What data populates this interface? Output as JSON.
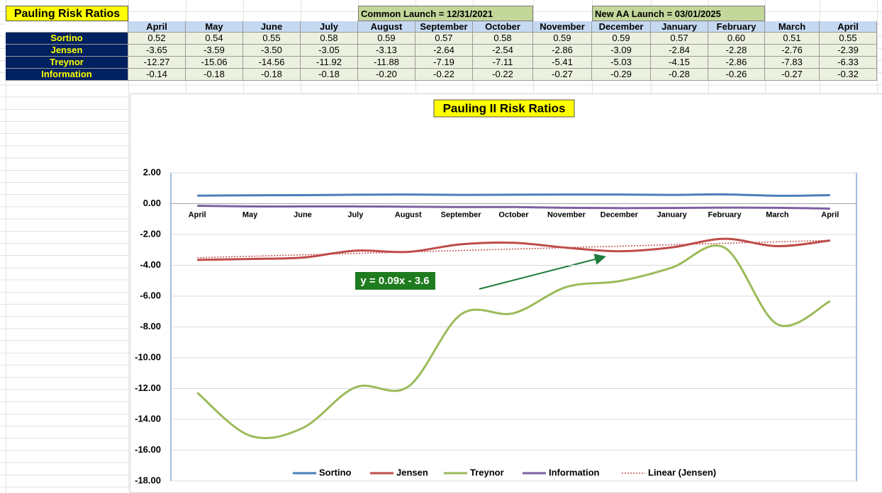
{
  "table": {
    "title": "Pauling Risk Ratios",
    "notes": [
      "Common Launch = 12/31/2021",
      "New AA Launch = 03/01/2025"
    ],
    "columns": [
      "April",
      "May",
      "June",
      "July",
      "August",
      "September",
      "October",
      "November",
      "December",
      "January",
      "February",
      "March",
      "April"
    ],
    "rows": [
      {
        "label": "Sortino",
        "cells": [
          "0.52",
          "0.54",
          "0.55",
          "0.58",
          "0.59",
          "0.57",
          "0.58",
          "0.59",
          "0.59",
          "0.57",
          "0.60",
          "0.51",
          "0.55"
        ]
      },
      {
        "label": "Jensen",
        "cells": [
          "-3.65",
          "-3.59",
          "-3.50",
          "-3.05",
          "-3.13",
          "-2.64",
          "-2.54",
          "-2.86",
          "-3.09",
          "-2.84",
          "-2.28",
          "-2.76",
          "-2.39"
        ]
      },
      {
        "label": "Treynor",
        "cells": [
          "-12.27",
          "-15.06",
          "-14.56",
          "-11.92",
          "-11.88",
          "-7.19",
          "-7.11",
          "-5.41",
          "-5.03",
          "-4.15",
          "-2.86",
          "-7.83",
          "-6.33"
        ]
      },
      {
        "label": "Information",
        "cells": [
          "-0.14",
          "-0.18",
          "-0.18",
          "-0.18",
          "-0.20",
          "-0.22",
          "-0.22",
          "-0.27",
          "-0.29",
          "-0.28",
          "-0.26",
          "-0.27",
          "-0.32"
        ]
      }
    ]
  },
  "chart_data": {
    "type": "line",
    "title": "Pauling II Risk Ratios",
    "categories": [
      "April",
      "May",
      "June",
      "July",
      "August",
      "September",
      "October",
      "November",
      "December",
      "January",
      "February",
      "March",
      "April"
    ],
    "series": [
      {
        "name": "Sortino",
        "color": "#4a7ebb",
        "values": [
          0.52,
          0.54,
          0.55,
          0.58,
          0.59,
          0.57,
          0.58,
          0.59,
          0.59,
          0.57,
          0.6,
          0.51,
          0.55
        ]
      },
      {
        "name": "Jensen",
        "color": "#be4b48",
        "values": [
          -3.65,
          -3.59,
          -3.5,
          -3.05,
          -3.13,
          -2.64,
          -2.54,
          -2.86,
          -3.09,
          -2.84,
          -2.28,
          -2.76,
          -2.39
        ]
      },
      {
        "name": "Treynor",
        "color": "#9bbb59",
        "values": [
          -12.27,
          -15.06,
          -14.56,
          -11.92,
          -11.88,
          -7.19,
          -7.11,
          -5.41,
          -5.03,
          -4.15,
          -2.86,
          -7.83,
          -6.33
        ]
      },
      {
        "name": "Information",
        "color": "#7d60a0",
        "values": [
          -0.14,
          -0.18,
          -0.18,
          -0.18,
          -0.2,
          -0.22,
          -0.22,
          -0.27,
          -0.29,
          -0.28,
          -0.26,
          -0.27,
          -0.32
        ]
      }
    ],
    "trendline": {
      "name": "Linear (Jensen)",
      "color": "#c0504d",
      "equation": "y = 0.09x - 3.6"
    },
    "ylim": [
      -18,
      2
    ],
    "yticks": [
      {
        "value": 2,
        "label": "2.00"
      },
      {
        "value": 0,
        "label": "0.00"
      },
      {
        "value": -2,
        "label": "-2.00"
      },
      {
        "value": -4,
        "label": "-4.00"
      },
      {
        "value": -6,
        "label": "-6.00"
      },
      {
        "value": -8,
        "label": "-8.00"
      },
      {
        "value": -10,
        "label": "-10.00"
      },
      {
        "value": -12,
        "label": "-12.00"
      },
      {
        "value": -14,
        "label": "-14.00"
      },
      {
        "value": -16,
        "label": "-16.00"
      },
      {
        "value": -18,
        "label": "-18.00"
      }
    ],
    "grid": true,
    "legend": "bottom"
  }
}
